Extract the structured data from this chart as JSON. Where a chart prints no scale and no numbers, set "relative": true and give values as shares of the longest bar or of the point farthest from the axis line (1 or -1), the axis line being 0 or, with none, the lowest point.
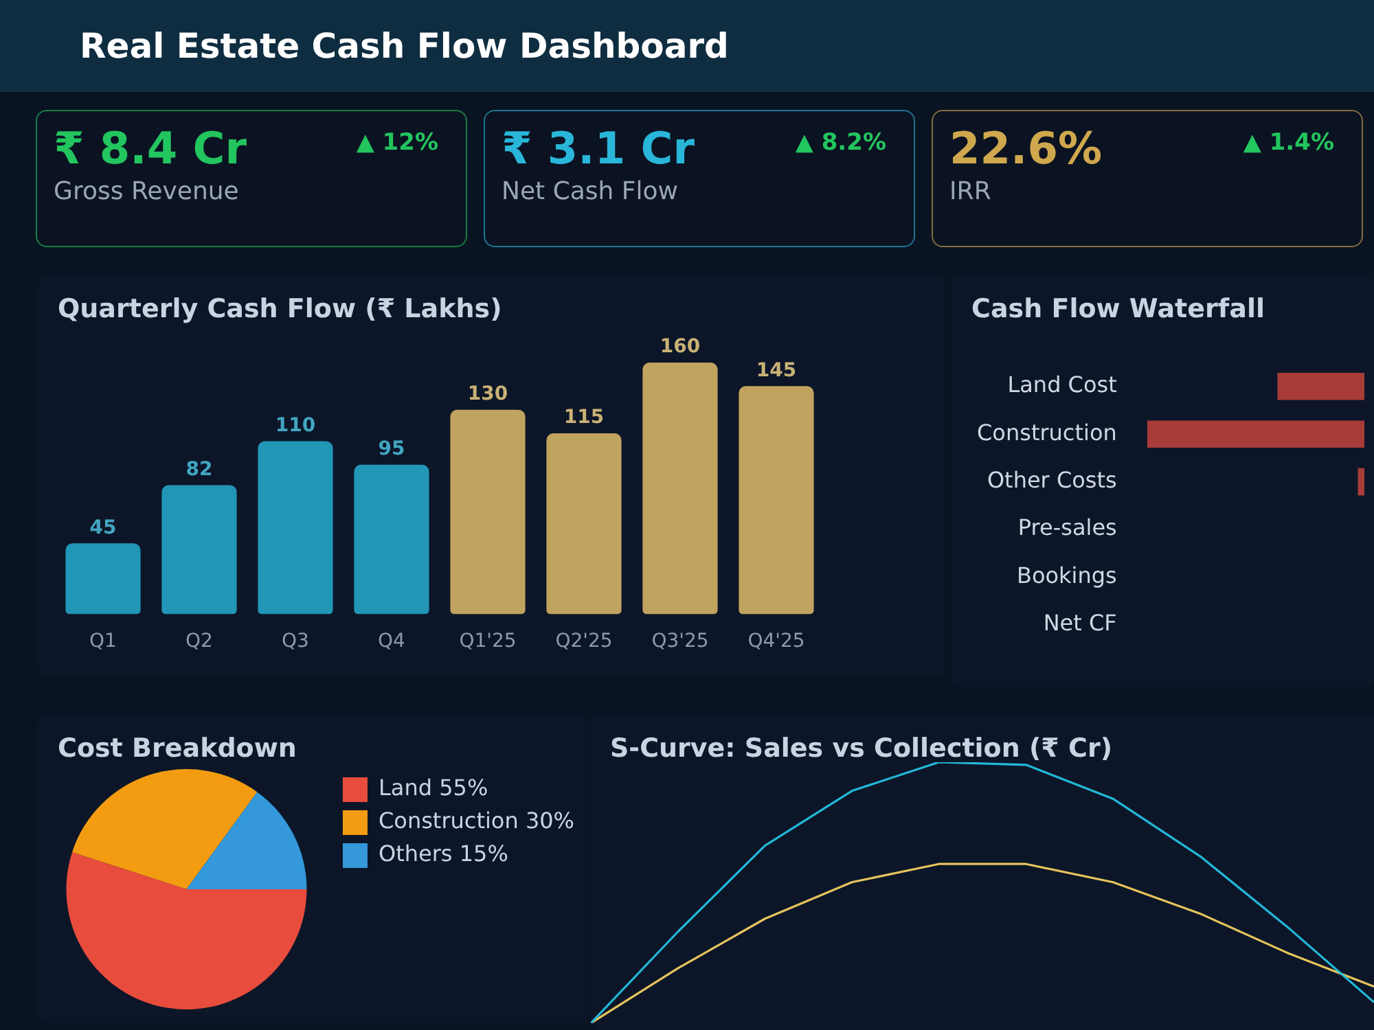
{
  "chart_data": [
    {
      "type": "other",
      "title": "Real Estate Cash Flow Dashboard",
      "annotations": [
        "₹ 8.4 Cr",
        "▲ 12%",
        "Gross Revenue",
        "₹ 3.1 Cr",
        "▲ 8.2%",
        "Net Cash Flow",
        "22.6%",
        "▲ 1.4%",
        "IRR"
      ],
      "colors": [
        "#22c55e",
        "#29b6d9",
        "#cfa84e"
      ]
    },
    {
      "type": "bar",
      "title": "Quarterly Cash Flow (₹ Lakhs)",
      "categories": [
        "Q1",
        "Q2",
        "Q3",
        "Q4",
        "Q1'25",
        "Q2'25",
        "Q3'25",
        "Q4'25"
      ],
      "values": [
        45,
        82,
        110,
        95,
        130,
        115,
        160,
        145
      ],
      "colors": [
        "#2196b6",
        "#2196b6",
        "#2196b6",
        "#2196b6",
        "#c0a35e",
        "#c0a35e",
        "#c0a35e",
        "#c0a35e"
      ],
      "data_labels": true,
      "legend": false
    },
    {
      "type": "bar",
      "title": "Cash Flow Waterfall",
      "orientation": "horizontal",
      "relative": true,
      "categories": [
        "Land Cost",
        "Construction",
        "Other Costs",
        "Pre-sales",
        "Bookings",
        "Net CF"
      ],
      "values": [
        0.4,
        1,
        0.03,
        null,
        null,
        null
      ],
      "color": "#a83c38",
      "legend": false
    },
    {
      "type": "pie",
      "title": "Cost Breakdown",
      "categories": [
        "Land 55%",
        "Construction 30%",
        "Others 15%"
      ],
      "values": [
        55,
        30,
        15
      ],
      "colors": [
        "#e74c3c",
        "#f39c12",
        "#3498db"
      ],
      "legend": "top right"
    },
    {
      "type": "line",
      "title": "S-Curve: Sales vs Collection (₹ Cr)",
      "relative": true,
      "categories": [
        null,
        null,
        null,
        null,
        null,
        null,
        null,
        null,
        null,
        null
      ],
      "series": [
        {
          "color": "#22b8d8",
          "values": [
            0,
            0.35,
            0.68,
            0.89,
            1,
            0.99,
            0.86,
            0.64,
            0.37,
            0.08
          ]
        },
        {
          "color": "#e6c35c",
          "values": [
            0,
            0.21,
            0.4,
            0.54,
            0.61,
            0.61,
            0.54,
            0.42,
            0.27,
            0.14
          ]
        }
      ],
      "marker": "none",
      "line_style": "solid",
      "legend": false
    }
  ]
}
